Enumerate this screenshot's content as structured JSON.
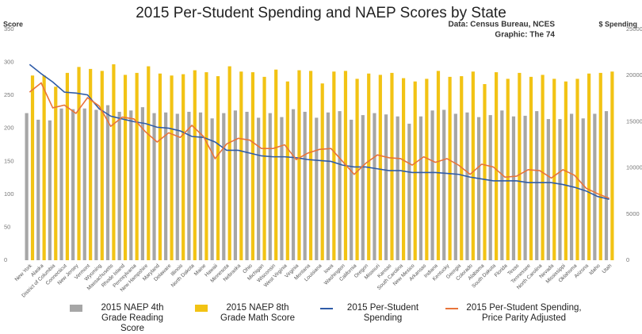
{
  "chart_data": {
    "type": "bar",
    "title": "2015 Per-Student Spending and NAEP Scores by State",
    "subtitle": [
      "Data: Census Bureau, NCES",
      "Graphic: The 74"
    ],
    "y_label": "Score",
    "y2_label": "$ Spending",
    "categories": [
      "New York",
      "Alaska",
      "District of Columbia",
      "Connecticut",
      "New Jersey",
      "Vermont",
      "Wyoming",
      "Massachusetts",
      "Rhode Island",
      "Pennsylvania",
      "New Hampshire",
      "Maryland",
      "Delaware",
      "Illinois",
      "North Dakota",
      "Maine",
      "Hawaii",
      "Minnesota",
      "Nebraska",
      "Ohio",
      "Michigan",
      "Wisconsin",
      "West Virginia",
      "Virginia",
      "Montana",
      "Louisiana",
      "Iowa",
      "Washington",
      "California",
      "Oregon",
      "Missouri",
      "Kansas",
      "South Carolina",
      "New Mexico",
      "Arkansas",
      "Indiana",
      "Kentucky",
      "Georgia",
      "Colorado",
      "Alabama",
      "South Dakota",
      "Florida",
      "Texas",
      "Tennessee",
      "North Carolina",
      "Nevada",
      "Mississippi",
      "Oklahoma",
      "Arizona",
      "Idaho",
      "Utah"
    ],
    "ylim": [
      0,
      350
    ],
    "yticks": [
      0,
      50,
      100,
      150,
      200,
      250,
      300,
      350
    ],
    "y2lim": [
      0,
      25000
    ],
    "y2ticks": [
      0,
      5000,
      10000,
      15000,
      20000,
      25000
    ],
    "grid": false,
    "series": [
      {
        "name": "2015 NAEP 4th Grade Reading Score",
        "type": "bar",
        "color": "#a6a6a6",
        "values": [
          223,
          213,
          212,
          230,
          229,
          230,
          228,
          235,
          225,
          227,
          232,
          223,
          224,
          222,
          225,
          224,
          215,
          223,
          227,
          225,
          216,
          223,
          217,
          229,
          225,
          216,
          224,
          226,
          213,
          220,
          223,
          221,
          218,
          207,
          218,
          227,
          228,
          222,
          224,
          217,
          220,
          227,
          218,
          219,
          226,
          214,
          214,
          222,
          215,
          222,
          226
        ]
      },
      {
        "name": "2015 NAEP 8th Grade Math Score",
        "type": "bar",
        "color": "#f2c314",
        "values": [
          280,
          280,
          263,
          284,
          293,
          290,
          287,
          297,
          281,
          284,
          294,
          283,
          280,
          282,
          288,
          285,
          279,
          294,
          286,
          285,
          278,
          289,
          271,
          288,
          287,
          268,
          286,
          287,
          275,
          283,
          281,
          284,
          276,
          271,
          275,
          287,
          278,
          279,
          286,
          267,
          285,
          275,
          284,
          278,
          281,
          275,
          271,
          275,
          283,
          284,
          286
        ]
      },
      {
        "name": "2015 Per-Student Spending",
        "type": "line",
        "axis": "y2",
        "color": "#2f5ca8",
        "values": [
          21200,
          20200,
          19300,
          18200,
          18100,
          17900,
          16400,
          15600,
          15300,
          15000,
          14800,
          14400,
          14300,
          14000,
          13400,
          13300,
          12800,
          11900,
          11900,
          11600,
          11300,
          11200,
          11200,
          11100,
          10900,
          10800,
          10700,
          10300,
          10100,
          10100,
          9900,
          9700,
          9700,
          9500,
          9500,
          9500,
          9400,
          9300,
          9000,
          8800,
          8600,
          8600,
          8600,
          8400,
          8400,
          8400,
          8200,
          7900,
          7500,
          6900,
          6600
        ]
      },
      {
        "name": "2015 Per-Student Spending, Price Parity Adjusted",
        "type": "line",
        "axis": "y2",
        "color": "#e8743b",
        "values": [
          18200,
          19200,
          16500,
          16800,
          15900,
          17600,
          16700,
          14500,
          15500,
          15300,
          13900,
          12800,
          13800,
          13300,
          14600,
          13400,
          11000,
          12600,
          13200,
          13000,
          12100,
          12100,
          12500,
          10900,
          11600,
          12000,
          12100,
          10700,
          9300,
          10500,
          11400,
          11100,
          11000,
          10300,
          11200,
          10600,
          11000,
          10300,
          9300,
          10400,
          10100,
          9000,
          9100,
          9800,
          9700,
          8900,
          9800,
          9200,
          7800,
          7200,
          6700
        ]
      }
    ]
  }
}
